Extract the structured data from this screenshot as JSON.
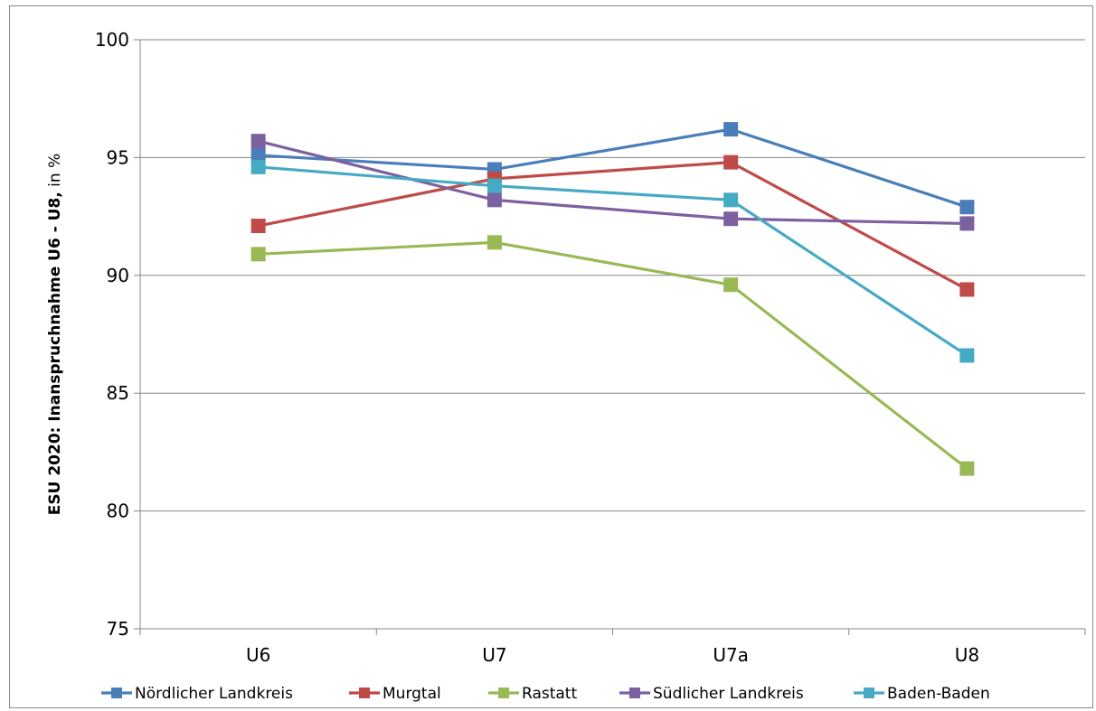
{
  "chart_data": {
    "type": "line",
    "title": "",
    "xlabel": "",
    "ylabel_bold": "ESU 2020: Inanspruchnahme U6 - U8,",
    "ylabel_rest": " in %",
    "categories": [
      "U6",
      "U7",
      "U7a",
      "U8"
    ],
    "ylim": [
      75,
      100
    ],
    "yticks": [
      75,
      80,
      85,
      90,
      95,
      100
    ],
    "grid": true,
    "legend_position": "bottom",
    "series": [
      {
        "name": "Nördlicher Landkreis",
        "color": "#4a7ebb",
        "values": [
          95.1,
          94.5,
          96.2,
          92.9
        ]
      },
      {
        "name": "Murgtal",
        "color": "#be4b48",
        "values": [
          92.1,
          94.1,
          94.8,
          89.4
        ]
      },
      {
        "name": "Rastatt",
        "color": "#98b954",
        "values": [
          90.9,
          91.4,
          89.6,
          81.8
        ]
      },
      {
        "name": "Südlicher Landkreis",
        "color": "#7d60a0",
        "values": [
          95.7,
          93.2,
          92.4,
          92.2
        ]
      },
      {
        "name": "Baden-Baden",
        "color": "#46aac5",
        "values": [
          94.6,
          93.8,
          93.2,
          86.6
        ]
      }
    ]
  }
}
